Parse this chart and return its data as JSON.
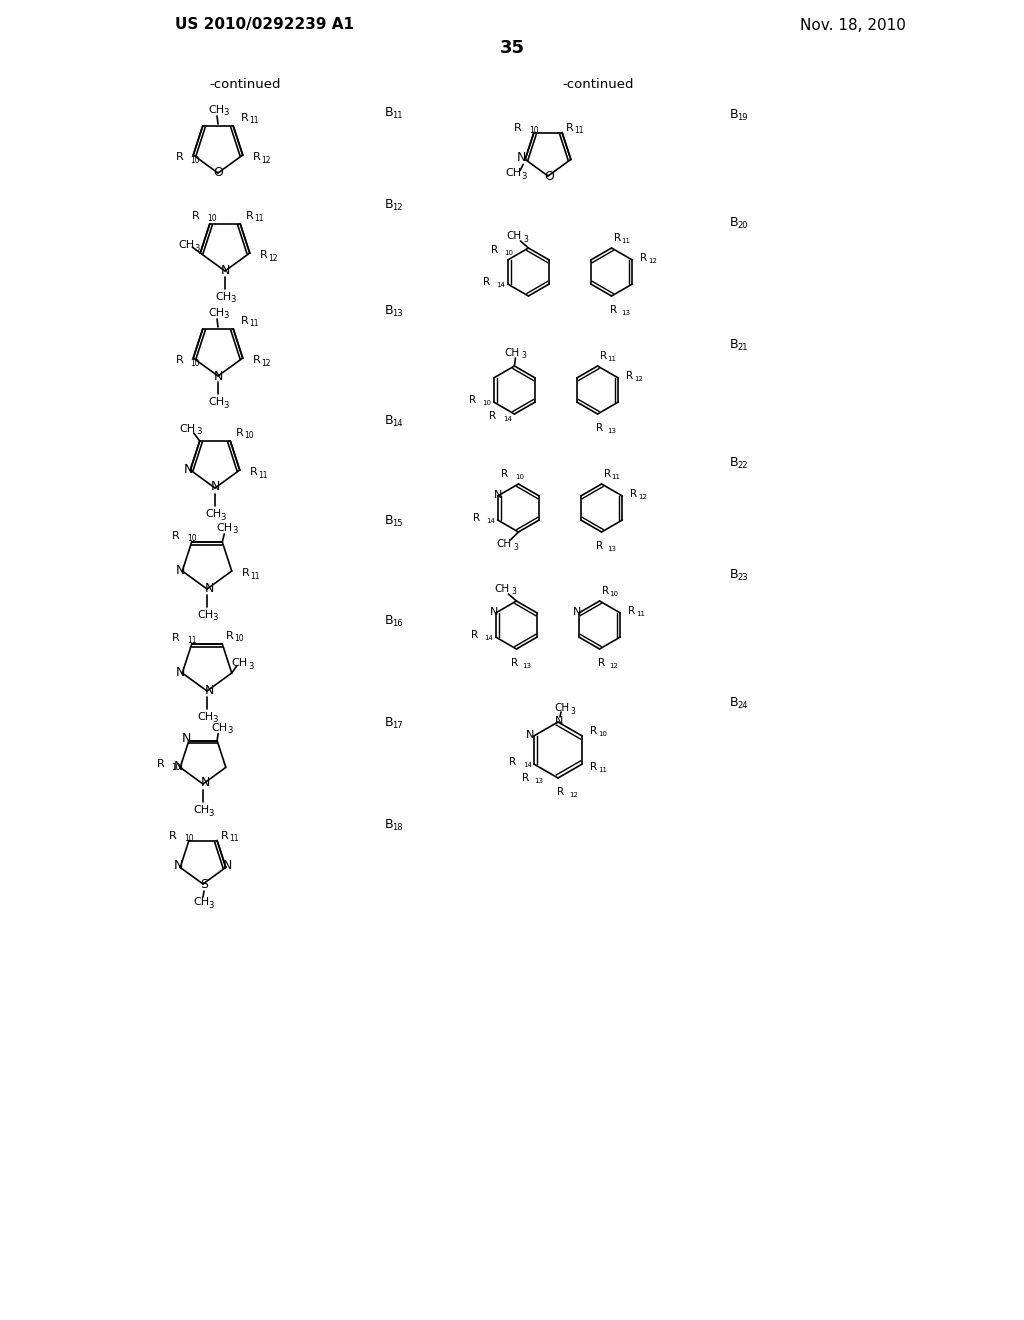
{
  "page_title_left": "US 2010/0292239 A1",
  "page_title_right": "Nov. 18, 2010",
  "page_number": "35",
  "bg_color": "#ffffff",
  "text_color": "#000000",
  "continued_left": "-continued",
  "continued_right": "-continued"
}
